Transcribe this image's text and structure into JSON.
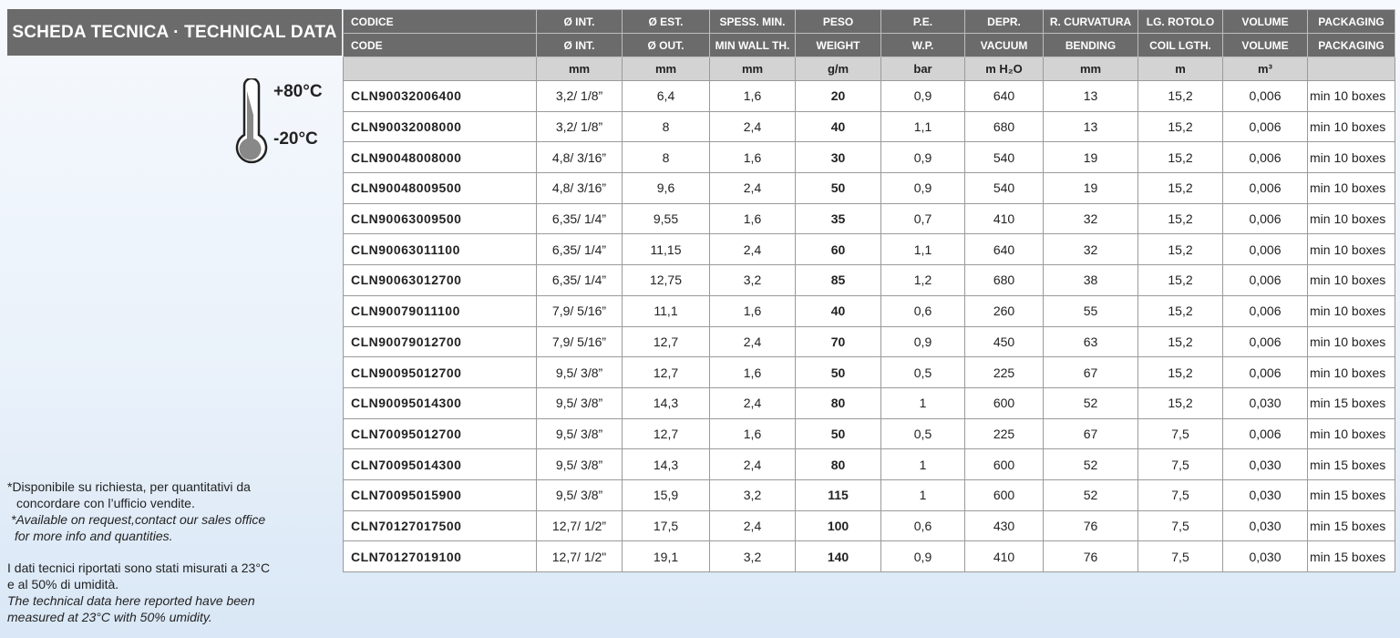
{
  "title": "SCHEDA TECNICA · TECHNICAL DATA",
  "temperature": {
    "max": "+80°C",
    "min": "-20°C",
    "icon": "thermometer-icon"
  },
  "headers_it": [
    "CODICE",
    "Ø INT.",
    "Ø EST.",
    "SPESS. MIN.",
    "PESO",
    "P.E.",
    "DEPR.",
    "R. CURVATURA",
    "LG. ROTOLO",
    "VOLUME",
    "PACKAGING"
  ],
  "headers_en": [
    "CODE",
    "Ø INT.",
    "Ø OUT.",
    "MIN WALL TH.",
    "WEIGHT",
    "W.P.",
    "VACUUM",
    "BENDING",
    "COIL LGTH.",
    "VOLUME",
    "PACKAGING"
  ],
  "units": [
    "",
    "mm",
    "mm",
    "mm",
    "g/m",
    "bar",
    "m H₂O",
    "mm",
    "m",
    "m³",
    ""
  ],
  "rows": [
    [
      "CLN90032006400",
      "3,2/ 1/8”",
      "6,4",
      "1,6",
      "20",
      "0,9",
      "640",
      "13",
      "15,2",
      "0,006",
      "min 10 boxes"
    ],
    [
      "CLN90032008000",
      "3,2/ 1/8”",
      "8",
      "2,4",
      "40",
      "1,1",
      "680",
      "13",
      "15,2",
      "0,006",
      "min 10 boxes"
    ],
    [
      "CLN90048008000",
      "4,8/ 3/16”",
      "8",
      "1,6",
      "30",
      "0,9",
      "540",
      "19",
      "15,2",
      "0,006",
      "min 10 boxes"
    ],
    [
      "CLN90048009500",
      "4,8/ 3/16”",
      "9,6",
      "2,4",
      "50",
      "0,9",
      "540",
      "19",
      "15,2",
      "0,006",
      "min 10 boxes"
    ],
    [
      "CLN90063009500",
      "6,35/ 1/4”",
      "9,55",
      "1,6",
      "35",
      "0,7",
      "410",
      "32",
      "15,2",
      "0,006",
      "min 10 boxes"
    ],
    [
      "CLN90063011100",
      "6,35/ 1/4”",
      "11,15",
      "2,4",
      "60",
      "1,1",
      "640",
      "32",
      "15,2",
      "0,006",
      "min 10 boxes"
    ],
    [
      "CLN90063012700",
      "6,35/ 1/4”",
      "12,75",
      "3,2",
      "85",
      "1,2",
      "680",
      "38",
      "15,2",
      "0,006",
      "min 10 boxes"
    ],
    [
      "CLN90079011100",
      "7,9/ 5/16”",
      "11,1",
      "1,6",
      "40",
      "0,6",
      "260",
      "55",
      "15,2",
      "0,006",
      "min 10 boxes"
    ],
    [
      "CLN90079012700",
      "7,9/ 5/16”",
      "12,7",
      "2,4",
      "70",
      "0,9",
      "450",
      "63",
      "15,2",
      "0,006",
      "min 10 boxes"
    ],
    [
      "CLN90095012700",
      "9,5/ 3/8”",
      "12,7",
      "1,6",
      "50",
      "0,5",
      "225",
      "67",
      "15,2",
      "0,006",
      "min 10 boxes"
    ],
    [
      "CLN90095014300",
      "9,5/ 3/8”",
      "14,3",
      "2,4",
      "80",
      "1",
      "600",
      "52",
      "15,2",
      "0,030",
      "min 15 boxes"
    ],
    [
      "CLN70095012700",
      "9,5/ 3/8”",
      "12,7",
      "1,6",
      "50",
      "0,5",
      "225",
      "67",
      "7,5",
      "0,006",
      "min 10 boxes"
    ],
    [
      "CLN70095014300",
      "9,5/ 3/8”",
      "14,3",
      "2,4",
      "80",
      "1",
      "600",
      "52",
      "7,5",
      "0,030",
      "min 15 boxes"
    ],
    [
      "CLN70095015900",
      "9,5/ 3/8”",
      "15,9",
      "3,2",
      "115",
      "1",
      "600",
      "52",
      "7,5",
      "0,030",
      "min 15 boxes"
    ],
    [
      "CLN70127017500",
      "12,7/ 1/2”",
      "17,5",
      "2,4",
      "100",
      "0,6",
      "430",
      "76",
      "7,5",
      "0,030",
      "min 15 boxes"
    ],
    [
      "CLN70127019100",
      "12,7/ 1/2\"",
      "19,1",
      "3,2",
      "140",
      "0,9",
      "410",
      "76",
      "7,5",
      "0,030",
      "min 15 boxes"
    ]
  ],
  "notes": {
    "it1a": "*Disponibile su richiesta, per quantitativi da",
    "it1b": "concordare con l’ufficio vendite.",
    "en1a": "*Available on request,contact our sales office",
    "en1b": "for more info and quantities.",
    "it2a": "I dati tecnici riportati sono stati misurati a 23°C",
    "it2b": "e al 50% di umidità.",
    "en2a": "The technical data here reported have been",
    "en2b": "measured at 23°C with 50% umidity."
  }
}
